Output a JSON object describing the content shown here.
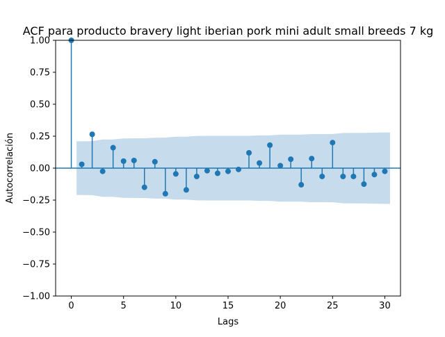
{
  "chart_data": {
    "type": "stem",
    "title": "ACF para producto bravery light iberian pork mini adult small breeds 7 kg",
    "xlabel": "Lags",
    "ylabel": "Autocorrelación",
    "xlim": [
      -1.5,
      31.5
    ],
    "ylim": [
      -1.0,
      1.0
    ],
    "x_ticks": [
      0,
      5,
      10,
      15,
      20,
      25,
      30
    ],
    "x_tick_labels": [
      "0",
      "5",
      "10",
      "15",
      "20",
      "25",
      "30"
    ],
    "y_ticks": [
      -1.0,
      -0.75,
      -0.5,
      -0.25,
      0.0,
      0.25,
      0.5,
      0.75,
      1.0
    ],
    "y_tick_labels": [
      "−1.00",
      "−0.75",
      "−0.50",
      "−0.25",
      "0.00",
      "0.25",
      "0.50",
      "0.75",
      "1.00"
    ],
    "lags": [
      0,
      1,
      2,
      3,
      4,
      5,
      6,
      7,
      8,
      9,
      10,
      11,
      12,
      13,
      14,
      15,
      16,
      17,
      18,
      19,
      20,
      21,
      22,
      23,
      24,
      25,
      26,
      27,
      28,
      29,
      30
    ],
    "values": [
      1.0,
      0.03,
      0.265,
      -0.025,
      0.16,
      0.055,
      0.06,
      -0.15,
      0.05,
      -0.2,
      -0.045,
      -0.17,
      -0.065,
      -0.02,
      -0.04,
      -0.025,
      -0.01,
      0.12,
      0.04,
      0.18,
      0.02,
      0.07,
      -0.13,
      0.075,
      -0.065,
      0.2,
      -0.065,
      -0.065,
      -0.125,
      -0.05,
      -0.025
    ],
    "confidence_band": {
      "x": [
        0.5,
        1,
        2,
        3,
        4,
        5,
        6,
        7,
        8,
        9,
        10,
        11,
        12,
        13,
        14,
        15,
        16,
        17,
        18,
        19,
        20,
        21,
        22,
        23,
        24,
        25,
        26,
        27,
        28,
        29,
        30,
        30.5
      ],
      "upper": [
        0.21,
        0.21,
        0.211,
        0.224,
        0.224,
        0.232,
        0.233,
        0.234,
        0.238,
        0.239,
        0.246,
        0.246,
        0.252,
        0.253,
        0.253,
        0.253,
        0.253,
        0.253,
        0.256,
        0.256,
        0.262,
        0.262,
        0.262,
        0.266,
        0.266,
        0.267,
        0.275,
        0.276,
        0.276,
        0.278,
        0.279,
        0.279
      ],
      "fill_color": "#c6dbec"
    },
    "marker_color": "#1f77b4",
    "zero_line": true,
    "grid": false,
    "legend": false
  }
}
